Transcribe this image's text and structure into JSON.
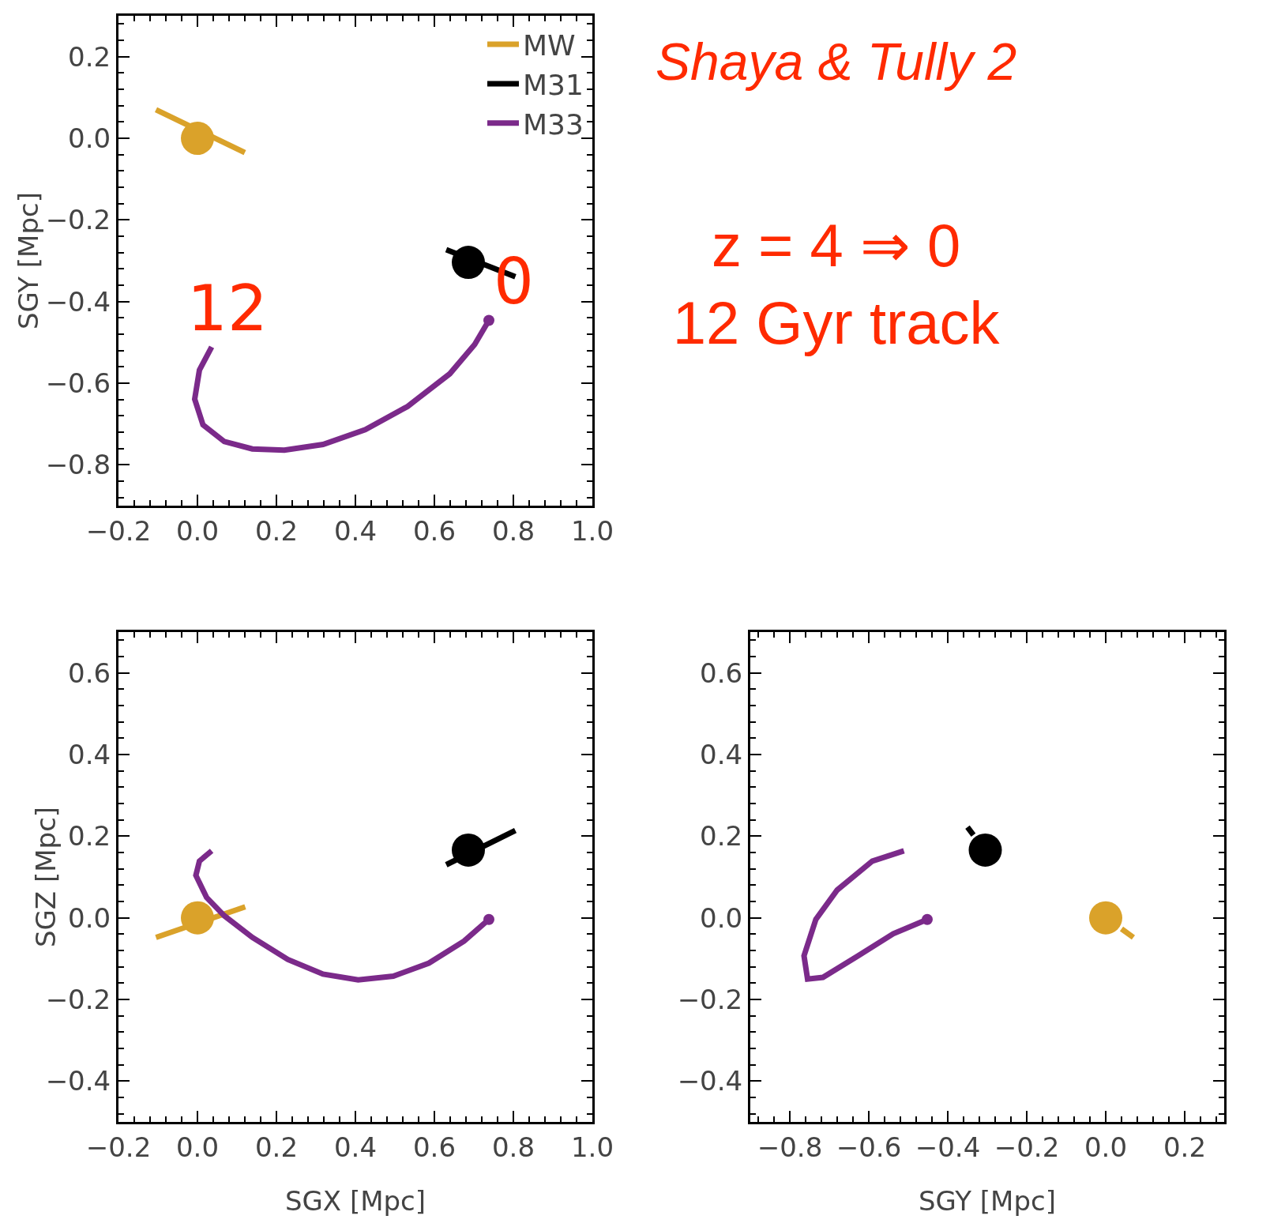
{
  "chart_data": [
    {
      "type": "line",
      "ylabel": "SGY [Mpc]",
      "xlim": [
        -0.2,
        1.0
      ],
      "ylim": [
        -0.9,
        0.3
      ],
      "xticks": [
        {
          "value": -0.2,
          "label": "−0.2"
        },
        {
          "value": 0,
          "label": "0.0"
        },
        {
          "value": 0.2,
          "label": "0.2"
        },
        {
          "value": 0.4,
          "label": "0.4"
        },
        {
          "value": 0.6,
          "label": "0.6"
        },
        {
          "value": 0.8,
          "label": "0.8"
        },
        {
          "value": 1.0,
          "label": "1.0"
        }
      ],
      "yticks": [
        {
          "value": -0.8,
          "label": "−0.8"
        },
        {
          "value": -0.6,
          "label": "−0.6"
        },
        {
          "value": -0.4,
          "label": "−0.4"
        },
        {
          "value": -0.2,
          "label": "−0.2"
        },
        {
          "value": 0,
          "label": "0.0"
        },
        {
          "value": 0.2,
          "label": "0.2"
        }
      ],
      "grid": false,
      "legend": "top right",
      "line_style": "solid",
      "annotations": [
        {
          "text": "12",
          "x": 0.036,
          "y": -0.511
        },
        {
          "text": "0",
          "x": 0.738,
          "y": -0.446
        }
      ],
      "series": [
        {
          "name": "MW",
          "type": "line",
          "color": "#daa22a",
          "x": [
            -0.105,
            0.12
          ],
          "values": [
            0.07,
            -0.035
          ]
        },
        {
          "type": "scatter",
          "color": "#daa22a",
          "x": [
            0
          ],
          "values": [
            0
          ]
        },
        {
          "name": "M31",
          "type": "line",
          "color": "#000000",
          "x": [
            0.63,
            0.805
          ],
          "values": [
            -0.273,
            -0.339
          ]
        },
        {
          "type": "scatter",
          "color": "#000000",
          "x": [
            0.686
          ],
          "values": [
            -0.304
          ]
        },
        {
          "name": "M33",
          "type": "line",
          "color": "#7b2a8a",
          "x": [
            0.036,
            0.005,
            -0.007,
            0.014,
            0.068,
            0.139,
            0.22,
            0.318,
            0.425,
            0.532,
            0.639,
            0.702,
            0.738
          ],
          "values": [
            -0.511,
            -0.568,
            -0.639,
            -0.702,
            -0.743,
            -0.761,
            -0.764,
            -0.75,
            -0.714,
            -0.657,
            -0.577,
            -0.505,
            -0.446
          ]
        }
      ]
    },
    {
      "type": "other",
      "title": "Shaya & Tully 2",
      "annotations": [
        "z = 4 ⇒ 0",
        "12 Gyr track"
      ]
    },
    {
      "type": "line",
      "xlabel": "SGX [Mpc]",
      "ylabel": "SGZ [Mpc]",
      "xlim": [
        -0.2,
        1.0
      ],
      "ylim": [
        -0.5,
        0.7
      ],
      "xticks": [
        {
          "value": -0.2,
          "label": "−0.2"
        },
        {
          "value": 0,
          "label": "0.0"
        },
        {
          "value": 0.2,
          "label": "0.2"
        },
        {
          "value": 0.4,
          "label": "0.4"
        },
        {
          "value": 0.6,
          "label": "0.6"
        },
        {
          "value": 0.8,
          "label": "0.8"
        },
        {
          "value": 1.0,
          "label": "1.0"
        }
      ],
      "yticks": [
        {
          "value": -0.4,
          "label": "−0.4"
        },
        {
          "value": -0.2,
          "label": "−0.2"
        },
        {
          "value": 0,
          "label": "0.0"
        },
        {
          "value": 0.2,
          "label": "0.2"
        },
        {
          "value": 0.4,
          "label": "0.4"
        },
        {
          "value": 0.6,
          "label": "0.6"
        }
      ],
      "grid": false,
      "line_style": "solid",
      "series": [
        {
          "type": "line",
          "color": "#daa22a",
          "x": [
            -0.105,
            0.121
          ],
          "values": [
            -0.048,
            0.027
          ]
        },
        {
          "type": "scatter",
          "color": "#daa22a",
          "x": [
            0
          ],
          "values": [
            0
          ]
        },
        {
          "type": "line",
          "color": "#000000",
          "x": [
            0.63,
            0.805
          ],
          "values": [
            0.13,
            0.214
          ]
        },
        {
          "type": "scatter",
          "color": "#000000",
          "x": [
            0.686
          ],
          "values": [
            0.166
          ]
        },
        {
          "type": "line",
          "color": "#7b2a8a",
          "x": [
            0.036,
            0.005,
            -0.004,
            0.023,
            0.068,
            0.139,
            0.229,
            0.318,
            0.407,
            0.496,
            0.586,
            0.675,
            0.738
          ],
          "values": [
            0.164,
            0.139,
            0.104,
            0.05,
            0.005,
            -0.048,
            -0.102,
            -0.138,
            -0.152,
            -0.143,
            -0.111,
            -0.057,
            -0.004
          ]
        }
      ]
    },
    {
      "type": "line",
      "xlabel": "SGY [Mpc]",
      "xlim": [
        -0.9,
        0.3
      ],
      "ylim": [
        -0.5,
        0.7
      ],
      "xticks": [
        {
          "value": -0.8,
          "label": "−0.8"
        },
        {
          "value": -0.6,
          "label": "−0.6"
        },
        {
          "value": -0.4,
          "label": "−0.4"
        },
        {
          "value": -0.2,
          "label": "−0.2"
        },
        {
          "value": 0,
          "label": "0.0"
        },
        {
          "value": 0.2,
          "label": "0.2"
        }
      ],
      "yticks": [
        {
          "value": -0.4,
          "label": "−0.4"
        },
        {
          "value": -0.2,
          "label": "−0.2"
        },
        {
          "value": 0,
          "label": "0.0"
        },
        {
          "value": 0.2,
          "label": "0.2"
        },
        {
          "value": 0.4,
          "label": "0.4"
        },
        {
          "value": 0.6,
          "label": "0.6"
        }
      ],
      "grid": false,
      "line_style": "solid",
      "series": [
        {
          "type": "line",
          "color": "#daa22a",
          "x": [
            0.04,
            0.07
          ],
          "values": [
            -0.027,
            -0.048
          ]
        },
        {
          "type": "scatter",
          "color": "#daa22a",
          "x": [
            0
          ],
          "values": [
            0
          ]
        },
        {
          "type": "line",
          "color": "#000000",
          "x": [
            -0.35,
            -0.335
          ],
          "values": [
            0.222,
            0.203
          ]
        },
        {
          "type": "scatter",
          "color": "#000000",
          "x": [
            -0.305
          ],
          "values": [
            0.166
          ]
        },
        {
          "type": "line",
          "color": "#7b2a8a",
          "x": [
            -0.511,
            -0.591,
            -0.68,
            -0.734,
            -0.764,
            -0.755,
            -0.716,
            -0.627,
            -0.538,
            -0.452
          ],
          "values": [
            0.164,
            0.139,
            0.068,
            -0.004,
            -0.093,
            -0.15,
            -0.146,
            -0.093,
            -0.039,
            -0.004
          ]
        }
      ]
    }
  ]
}
